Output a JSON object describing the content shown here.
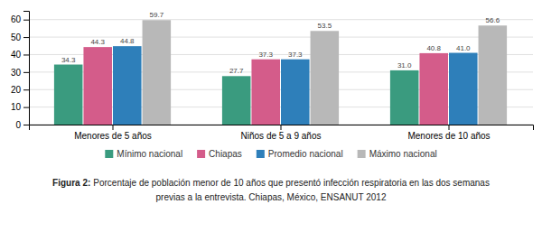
{
  "chart_data": {
    "type": "bar",
    "categories": [
      "Menores de 5 años",
      "Niños de 5 a 9 años",
      "Menores de 10 años"
    ],
    "series": [
      {
        "name": "Mínimo nacional",
        "color": "#3a9b7f",
        "values": [
          34.3,
          27.7,
          31.0
        ],
        "value_labels": [
          "34.3",
          "27.7",
          "31.0"
        ]
      },
      {
        "name": "Chiapas",
        "color": "#d45c8a",
        "values": [
          44.3,
          37.3,
          40.8
        ],
        "value_labels": [
          "44.3",
          "37.3",
          "40.8"
        ]
      },
      {
        "name": "Promedio nacional",
        "color": "#2e7fba",
        "values": [
          44.8,
          37.3,
          41.0
        ],
        "value_labels": [
          "44.8",
          "37.3",
          "41.0"
        ]
      },
      {
        "name": "Máximo nacional",
        "color": "#b8b8b8",
        "values": [
          59.7,
          53.5,
          56.6
        ],
        "value_labels": [
          "59.7",
          "53.5",
          "56.6"
        ]
      }
    ],
    "ylim": [
      0,
      65
    ],
    "yticks": [
      0,
      10,
      20,
      30,
      40,
      50,
      60
    ],
    "grid": true,
    "legend": "bottom",
    "data_labels": true,
    "annotations": [
      "Figura 2:",
      "Porcentaje de población menor de 10 años que presentó infección respiratoria en las dos semanas",
      "previas a la entrevista. Chiapas, México, ENSANUT 2012"
    ]
  }
}
